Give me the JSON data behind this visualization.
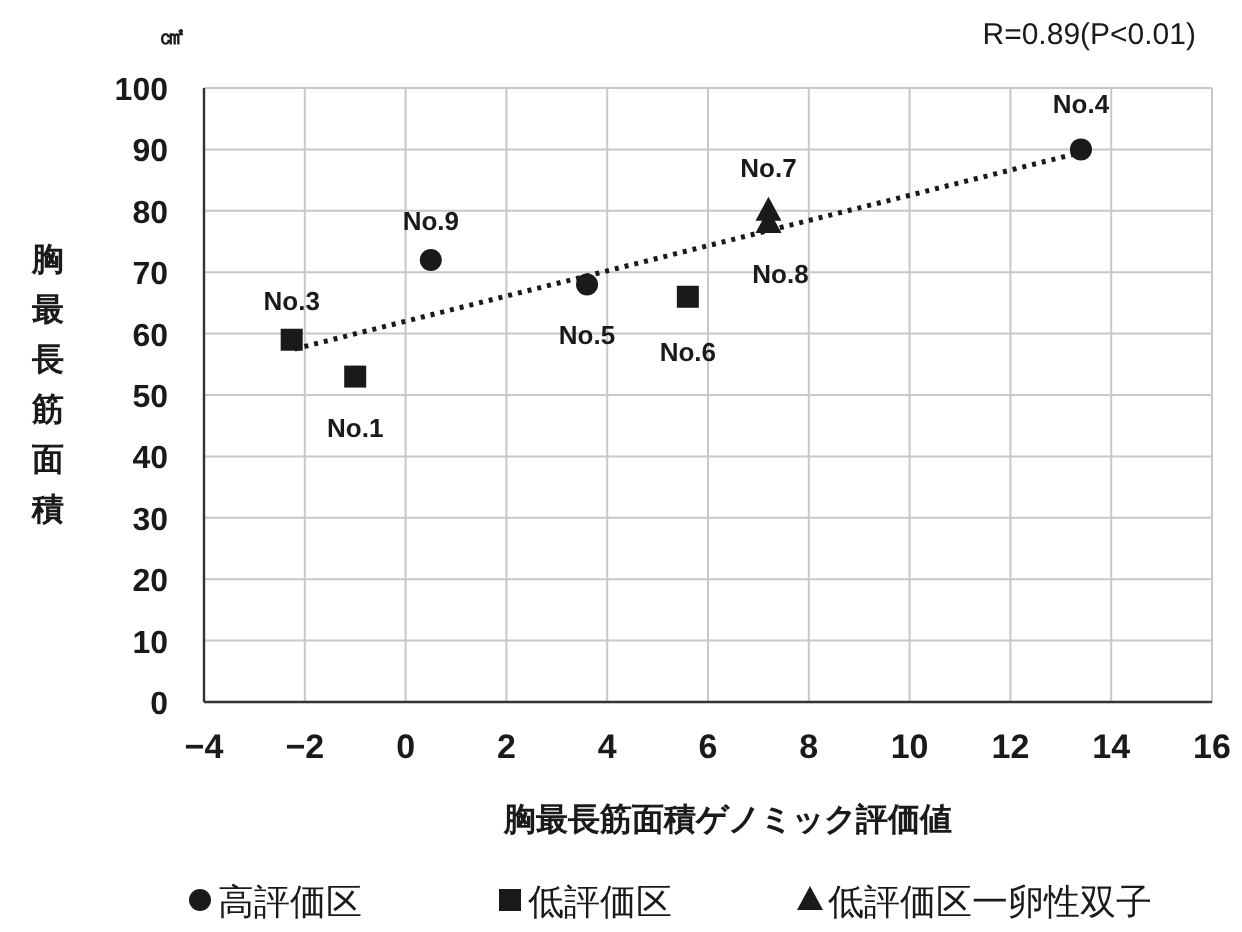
{
  "chart_data": {
    "type": "scatter",
    "xlabel": "胸最長筋面積ゲノミック評価値",
    "ylabel": "胸最長筋面積",
    "xlim": [
      -4,
      16
    ],
    "xticks": [
      -4,
      -2,
      0,
      2,
      4,
      6,
      8,
      10,
      12,
      14,
      16
    ],
    "ylim": [
      0,
      100
    ],
    "yticks": [
      0,
      10,
      20,
      30,
      40,
      50,
      60,
      70,
      80,
      90,
      100
    ],
    "grid": true,
    "legend": "bottom",
    "series": [
      {
        "name": "高評価区",
        "color": "#1a1a1a",
        "marker": "circle",
        "x": [
          0.5,
          3.6,
          13.4
        ],
        "values": [
          72,
          68,
          90
        ]
      },
      {
        "name": "低評価区",
        "color": "#1a1a1a",
        "marker": "square",
        "x": [
          -2.26,
          -1.0,
          5.6
        ],
        "values": [
          59,
          53,
          66
        ]
      },
      {
        "name": "低評価区一卵性双子",
        "color": "#1a1a1a",
        "marker": "triangle",
        "x": [
          7.2,
          7.2
        ],
        "values": [
          80,
          78
        ]
      },
      {
        "type": "line",
        "color": "#1a1a1a",
        "line_style": "dotted",
        "marker": "none",
        "x": [
          -2.2,
          13.4
        ],
        "values": [
          57.5,
          89.5
        ]
      }
    ],
    "annotations": [
      "R=0.89(P<0.01)",
      "㎠",
      {
        "text": "No.3",
        "x": -2.26,
        "y": 59
      },
      {
        "text": "No.1",
        "x": -1.0,
        "y": 53
      },
      {
        "text": "No.9",
        "x": 0.5,
        "y": 72
      },
      {
        "text": "No.5",
        "x": 3.6,
        "y": 68
      },
      {
        "text": "No.6",
        "x": 5.6,
        "y": 66
      },
      {
        "text": "No.7",
        "x": 7.2,
        "y": 80
      },
      {
        "text": "No.8",
        "x": 7.2,
        "y": 78
      },
      {
        "text": "No.4",
        "x": 13.4,
        "y": 90
      }
    ]
  }
}
